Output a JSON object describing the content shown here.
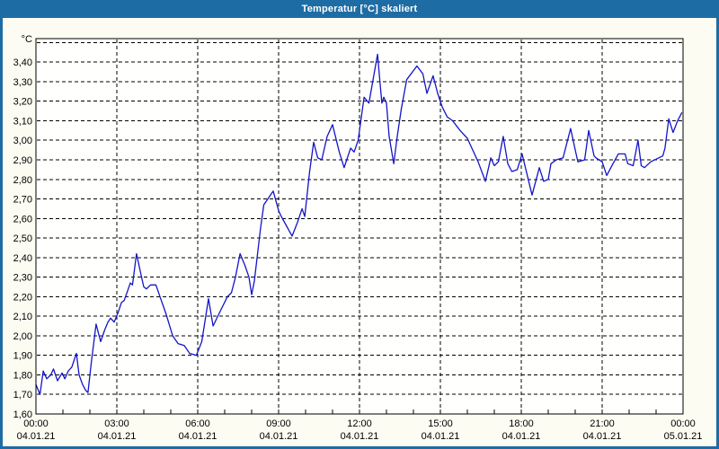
{
  "window": {
    "title": "Temperatur [°C] skaliert"
  },
  "colors": {
    "frame": "#1e6ca4",
    "title_text": "#ffffff",
    "content_bg": "#fcfcf2",
    "plot_bg": "#fffffe",
    "grid": "#000000",
    "axis": "#000000",
    "text": "#000000",
    "line": "#1414c8"
  },
  "chart_data": {
    "type": "line",
    "title": "Temperatur [°C] skaliert",
    "legend_position": "none",
    "grid": "dashed",
    "y_axis": {
      "unit_label": "°C",
      "min": 1.6,
      "max": 3.52,
      "tick_step": 0.1,
      "tick_labels": [
        "1,60",
        "1,70",
        "1,80",
        "1,90",
        "2,00",
        "2,10",
        "2,20",
        "2,30",
        "2,40",
        "2,50",
        "2,60",
        "2,70",
        "2,80",
        "2,90",
        "3,00",
        "3,10",
        "3,20",
        "3,30",
        "3,40"
      ],
      "unlabeled_top_gridline": 3.5
    },
    "x_axis": {
      "min_hours": 0,
      "max_hours": 24,
      "major_tick_hours": 3,
      "minor_tick_hours": 1,
      "tick_labels": [
        {
          "time": "00:00",
          "date": "04.01.21"
        },
        {
          "time": "03:00",
          "date": "04.01.21"
        },
        {
          "time": "06:00",
          "date": "04.01.21"
        },
        {
          "time": "09:00",
          "date": "04.01.21"
        },
        {
          "time": "12:00",
          "date": "04.01.21"
        },
        {
          "time": "15:00",
          "date": "04.01.21"
        },
        {
          "time": "18:00",
          "date": "04.01.21"
        },
        {
          "time": "21:00",
          "date": "04.01.21"
        },
        {
          "time": "00:00",
          "date": "05.01.21"
        }
      ]
    },
    "series": [
      {
        "name": "Temperatur",
        "color": "#1414c8",
        "points": [
          [
            0.0,
            1.75
          ],
          [
            0.15,
            1.7
          ],
          [
            0.27,
            1.82
          ],
          [
            0.4,
            1.78
          ],
          [
            0.55,
            1.8
          ],
          [
            0.65,
            1.83
          ],
          [
            0.8,
            1.77
          ],
          [
            0.97,
            1.81
          ],
          [
            1.07,
            1.78
          ],
          [
            1.2,
            1.82
          ],
          [
            1.33,
            1.84
          ],
          [
            1.5,
            1.91
          ],
          [
            1.6,
            1.8
          ],
          [
            1.73,
            1.75
          ],
          [
            1.85,
            1.72
          ],
          [
            1.93,
            1.71
          ],
          [
            2.05,
            1.86
          ],
          [
            2.15,
            1.97
          ],
          [
            2.23,
            2.06
          ],
          [
            2.4,
            1.97
          ],
          [
            2.55,
            2.03
          ],
          [
            2.67,
            2.07
          ],
          [
            2.77,
            2.09
          ],
          [
            2.9,
            2.07
          ],
          [
            3.05,
            2.12
          ],
          [
            3.17,
            2.17
          ],
          [
            3.27,
            2.18
          ],
          [
            3.4,
            2.23
          ],
          [
            3.5,
            2.27
          ],
          [
            3.58,
            2.26
          ],
          [
            3.73,
            2.42
          ],
          [
            3.9,
            2.31
          ],
          [
            4.0,
            2.25
          ],
          [
            4.1,
            2.24
          ],
          [
            4.25,
            2.26
          ],
          [
            4.45,
            2.26
          ],
          [
            4.6,
            2.2
          ],
          [
            4.83,
            2.11
          ],
          [
            5.07,
            2.0
          ],
          [
            5.27,
            1.96
          ],
          [
            5.5,
            1.95
          ],
          [
            5.7,
            1.91
          ],
          [
            5.95,
            1.9
          ],
          [
            6.15,
            1.97
          ],
          [
            6.4,
            2.19
          ],
          [
            6.57,
            2.05
          ],
          [
            6.85,
            2.13
          ],
          [
            7.1,
            2.2
          ],
          [
            7.25,
            2.22
          ],
          [
            7.4,
            2.3
          ],
          [
            7.57,
            2.42
          ],
          [
            7.75,
            2.36
          ],
          [
            7.9,
            2.3
          ],
          [
            8.0,
            2.21
          ],
          [
            8.1,
            2.28
          ],
          [
            8.33,
            2.55
          ],
          [
            8.45,
            2.67
          ],
          [
            8.8,
            2.74
          ],
          [
            9.0,
            2.64
          ],
          [
            9.1,
            2.61
          ],
          [
            9.3,
            2.56
          ],
          [
            9.5,
            2.51
          ],
          [
            9.7,
            2.58
          ],
          [
            9.87,
            2.65
          ],
          [
            9.97,
            2.61
          ],
          [
            10.15,
            2.84
          ],
          [
            10.3,
            2.99
          ],
          [
            10.45,
            2.91
          ],
          [
            10.6,
            2.9
          ],
          [
            10.8,
            3.02
          ],
          [
            11.0,
            3.08
          ],
          [
            11.25,
            2.94
          ],
          [
            11.43,
            2.86
          ],
          [
            11.67,
            2.96
          ],
          [
            11.8,
            2.94
          ],
          [
            11.95,
            3.0
          ],
          [
            12.17,
            3.22
          ],
          [
            12.35,
            3.19
          ],
          [
            12.67,
            3.44
          ],
          [
            12.77,
            3.28
          ],
          [
            12.83,
            3.19
          ],
          [
            12.9,
            3.22
          ],
          [
            13.0,
            3.19
          ],
          [
            13.1,
            3.02
          ],
          [
            13.27,
            2.88
          ],
          [
            13.4,
            3.02
          ],
          [
            13.55,
            3.16
          ],
          [
            13.75,
            3.31
          ],
          [
            14.13,
            3.38
          ],
          [
            14.35,
            3.34
          ],
          [
            14.5,
            3.24
          ],
          [
            14.73,
            3.33
          ],
          [
            14.9,
            3.24
          ],
          [
            15.07,
            3.17
          ],
          [
            15.25,
            3.12
          ],
          [
            15.45,
            3.1
          ],
          [
            15.73,
            3.05
          ],
          [
            16.0,
            3.01
          ],
          [
            16.2,
            2.95
          ],
          [
            16.4,
            2.89
          ],
          [
            16.67,
            2.79
          ],
          [
            16.87,
            2.91
          ],
          [
            17.0,
            2.87
          ],
          [
            17.15,
            2.89
          ],
          [
            17.33,
            3.02
          ],
          [
            17.5,
            2.88
          ],
          [
            17.65,
            2.84
          ],
          [
            17.85,
            2.85
          ],
          [
            18.03,
            2.93
          ],
          [
            18.4,
            2.72
          ],
          [
            18.67,
            2.86
          ],
          [
            18.83,
            2.79
          ],
          [
            19.0,
            2.8
          ],
          [
            19.1,
            2.88
          ],
          [
            19.3,
            2.9
          ],
          [
            19.55,
            2.91
          ],
          [
            19.83,
            3.06
          ],
          [
            20.05,
            2.92
          ],
          [
            20.1,
            2.89
          ],
          [
            20.35,
            2.9
          ],
          [
            20.5,
            3.05
          ],
          [
            20.7,
            2.92
          ],
          [
            20.77,
            2.91
          ],
          [
            21.0,
            2.89
          ],
          [
            21.17,
            2.82
          ],
          [
            21.4,
            2.88
          ],
          [
            21.6,
            2.93
          ],
          [
            21.85,
            2.93
          ],
          [
            21.95,
            2.88
          ],
          [
            22.15,
            2.87
          ],
          [
            22.33,
            3.0
          ],
          [
            22.45,
            2.87
          ],
          [
            22.57,
            2.86
          ],
          [
            22.8,
            2.89
          ],
          [
            23.1,
            2.91
          ],
          [
            23.25,
            2.92
          ],
          [
            23.33,
            2.96
          ],
          [
            23.47,
            3.11
          ],
          [
            23.63,
            3.04
          ],
          [
            23.8,
            3.1
          ],
          [
            23.95,
            3.14
          ]
        ]
      }
    ]
  }
}
